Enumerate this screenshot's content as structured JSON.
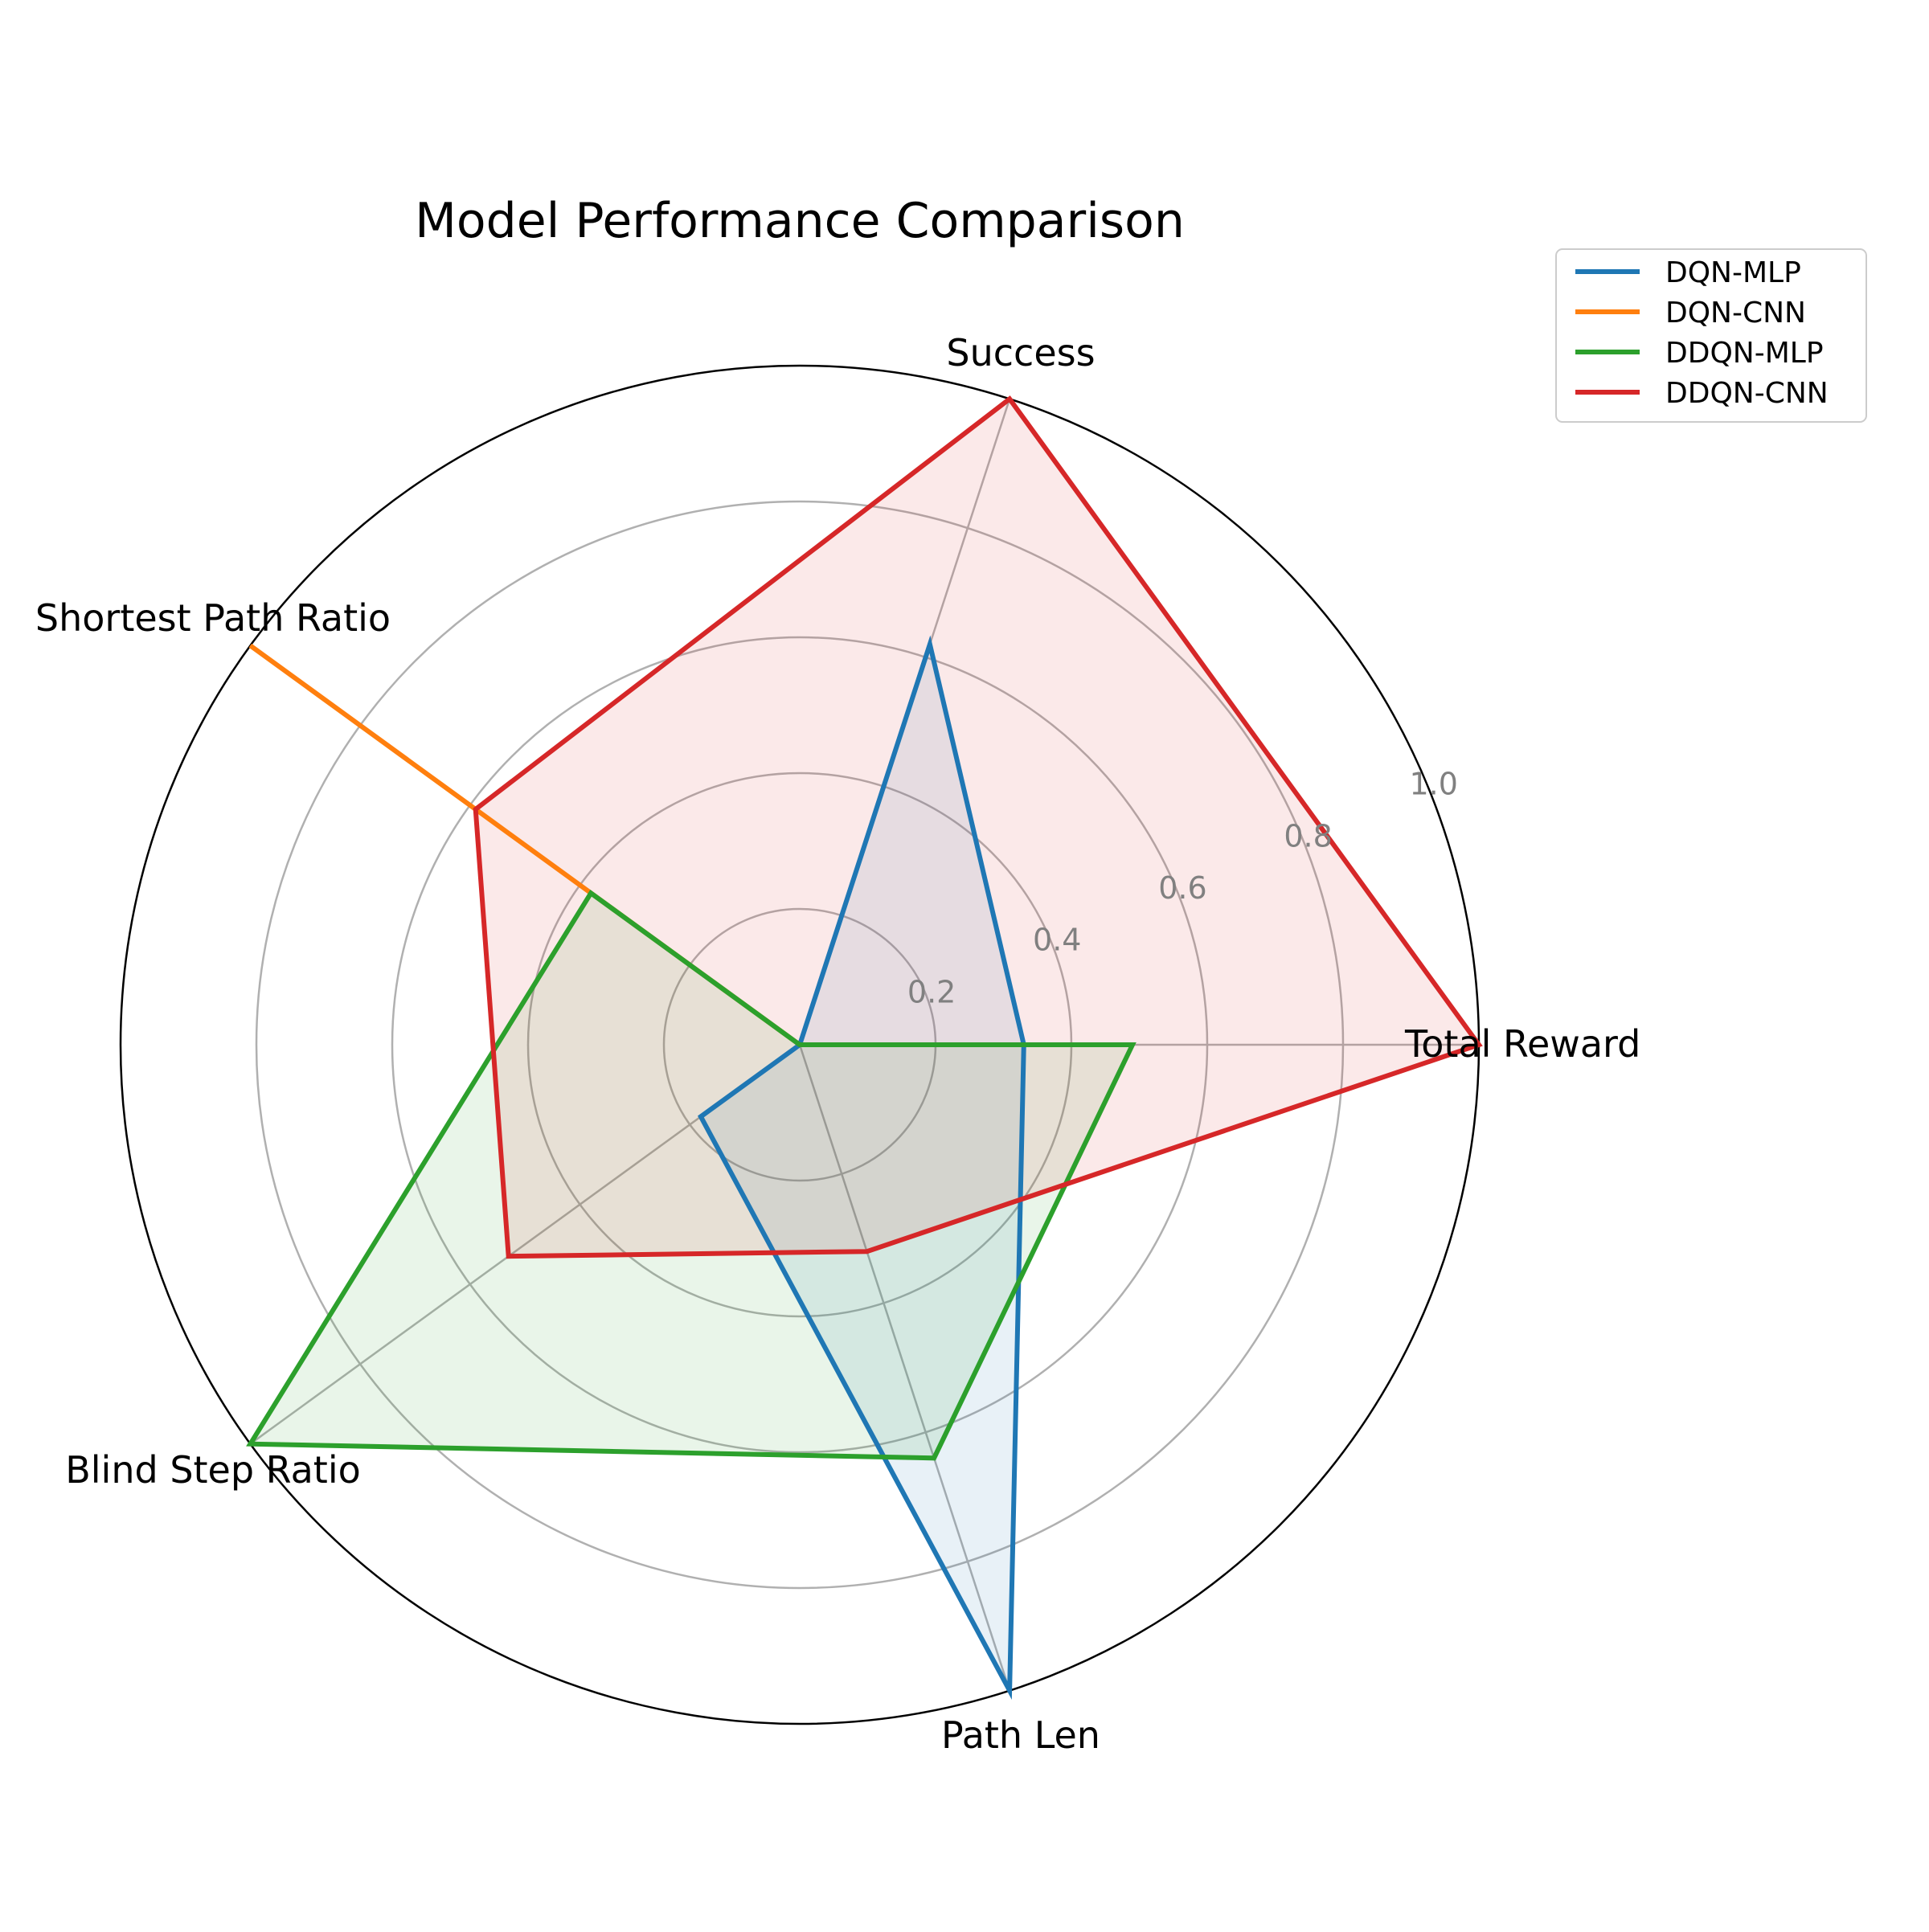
{
  "chart_data": {
    "type": "radar",
    "title": "Model Performance Comparison",
    "axes": [
      "Total Reward",
      "Success",
      "Shortest Path Ratio",
      "Blind Step Ratio",
      "Path Len"
    ],
    "rlim": [
      0,
      1
    ],
    "rticks": [
      0.2,
      0.4,
      0.6,
      0.8,
      1.0
    ],
    "rtick_labels": [
      "0.2",
      "0.4",
      "0.6",
      "0.8",
      "1.0"
    ],
    "grid": true,
    "legend_position": "top-right",
    "series": [
      {
        "name": "DQN-MLP",
        "color": "#1f77b4",
        "values": [
          0.33,
          0.62,
          0.0,
          0.18,
          1.0
        ]
      },
      {
        "name": "DQN-CNN",
        "color": "#ff7f0e",
        "values": [
          0.0,
          0.0,
          1.0,
          0.0,
          0.0
        ]
      },
      {
        "name": "DDQN-MLP",
        "color": "#2ca02c",
        "values": [
          0.49,
          0.0,
          0.38,
          1.0,
          0.64
        ]
      },
      {
        "name": "DDQN-CNN",
        "color": "#d62728",
        "values": [
          1.0,
          1.0,
          0.59,
          0.53,
          0.32
        ]
      }
    ]
  }
}
